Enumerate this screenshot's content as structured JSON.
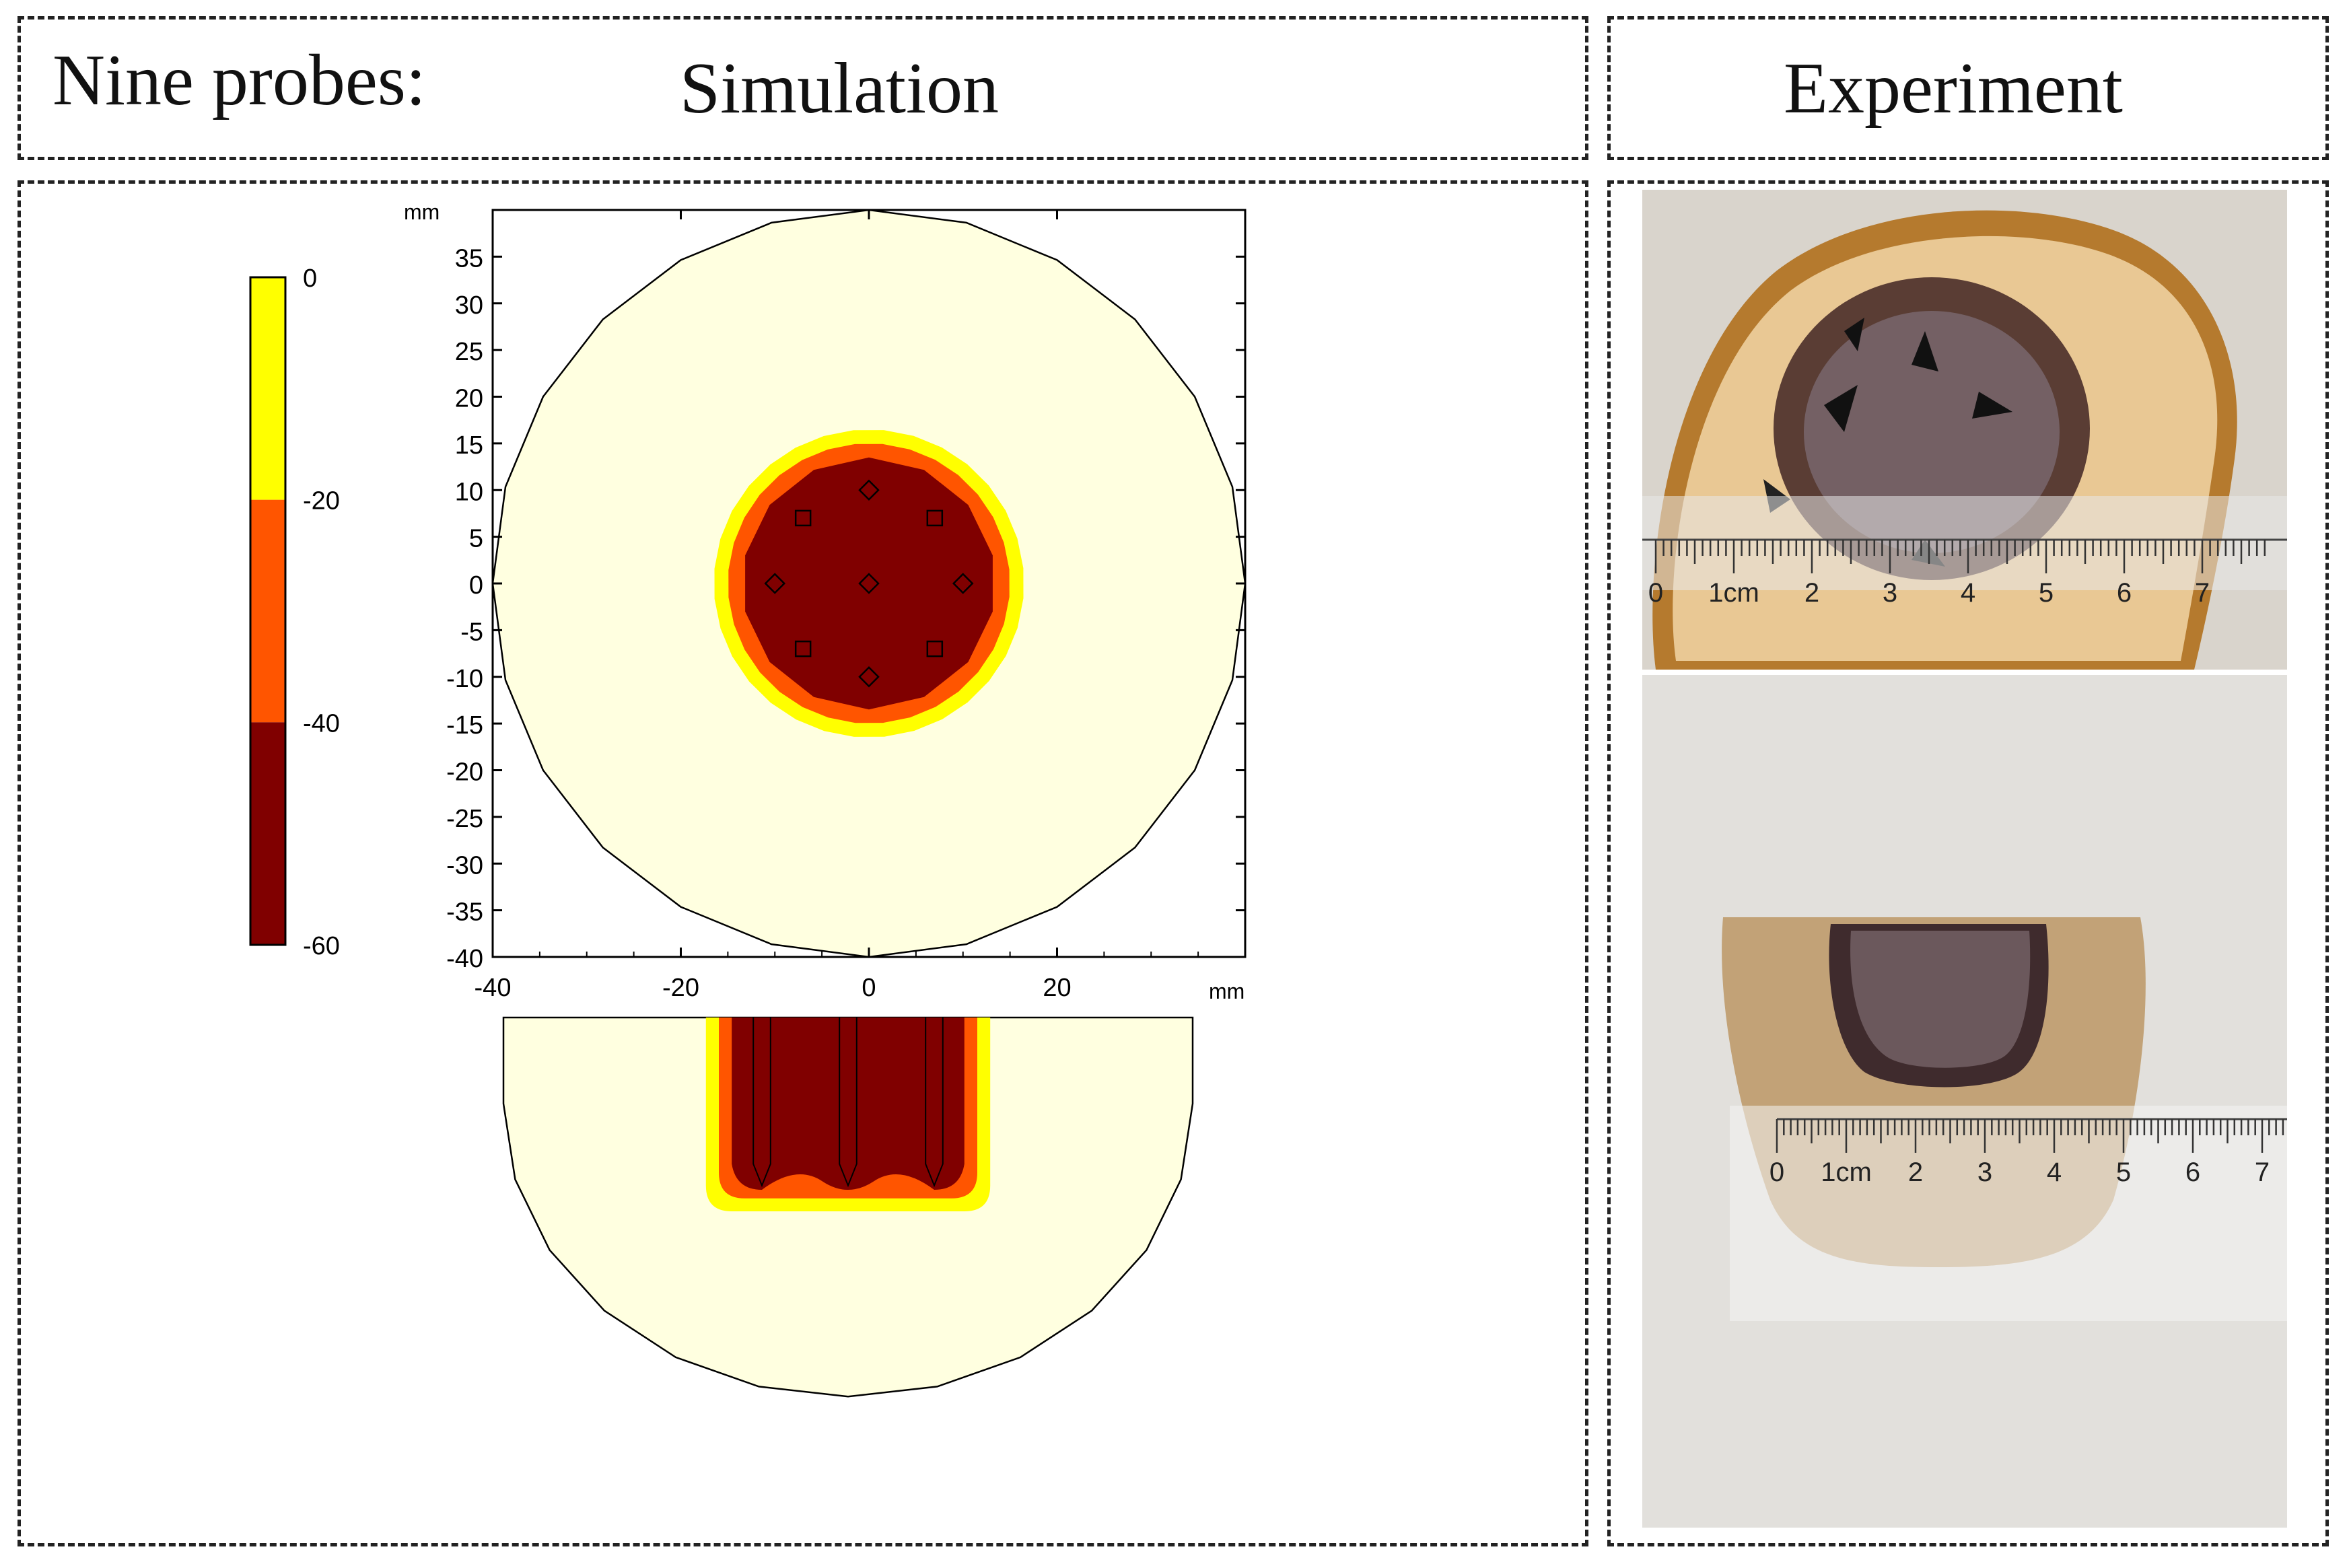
{
  "header": {
    "prefix": "Nine probes:",
    "simulation_title": "Simulation",
    "experiment_title": "Experiment"
  },
  "chart_data": {
    "type": "contour",
    "unit_label_y": "mm",
    "unit_label_x": "mm",
    "xlim": [
      -40,
      40
    ],
    "ylim": [
      -40,
      40
    ],
    "x_ticks": [
      -40,
      -20,
      0,
      20
    ],
    "y_ticks": [
      35,
      30,
      25,
      20,
      15,
      10,
      5,
      0,
      -5,
      -10,
      -15,
      -20,
      -25,
      -30,
      -35,
      -40
    ],
    "outer_radius_mm": 40,
    "contour_radii_mm": {
      "above_minus20": 16.5,
      "minus20_to_minus40": 15,
      "below_minus40": 13.5
    },
    "probes_diamond_mm": [
      [
        0,
        10
      ],
      [
        -10,
        0
      ],
      [
        0,
        0
      ],
      [
        10,
        0
      ],
      [
        0,
        -10
      ]
    ],
    "probes_square_mm": [
      [
        -7,
        7
      ],
      [
        7,
        7
      ],
      [
        -7,
        -7
      ],
      [
        7,
        -7
      ]
    ],
    "colorbar": {
      "ticks": [
        "0",
        "-20",
        "-40",
        "-60"
      ],
      "bands": [
        {
          "range": [
            -20,
            0
          ],
          "color": "#ffff00"
        },
        {
          "range": [
            -40,
            -20
          ],
          "color": "#ff5500"
        },
        {
          "range": [
            -60,
            -40
          ],
          "color": "#800000"
        }
      ]
    },
    "colors": {
      "background": "#ffffe0",
      "outline": "#000000"
    }
  },
  "experiment": {
    "top_photo": {
      "ruler_labels": [
        "0",
        "1cm",
        "2",
        "3",
        "4",
        "5",
        "6",
        "7"
      ]
    },
    "bottom_photo": {
      "ruler_labels": [
        "0",
        "1cm",
        "2",
        "3",
        "4",
        "5",
        "6",
        "7"
      ]
    }
  }
}
